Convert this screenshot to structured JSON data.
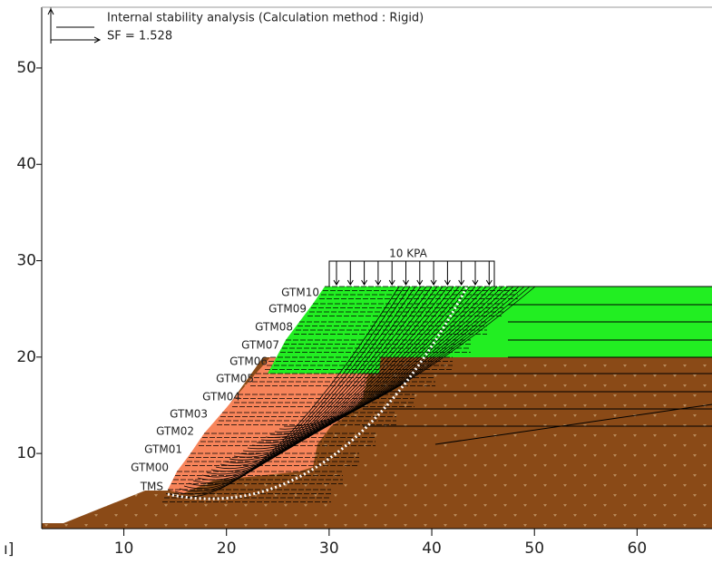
{
  "chart_data": {
    "type": "section",
    "title": "Internal stability analysis (Calculation method : Rigid)",
    "subtitle": "SF = 1.528",
    "load_label": "10 KPA",
    "x_label": "ı]",
    "layer_labels": [
      "TMS",
      "GTM00",
      "GTM01",
      "GTM02",
      "GTM03",
      "GTM04",
      "GTM05",
      "GTM06",
      "GTM07",
      "GTM08",
      "GTM09",
      "GTM10"
    ],
    "xlim": [
      2,
      67.3
    ],
    "ylim": [
      2.2,
      56.3
    ],
    "xticks": [
      10,
      20,
      30,
      40,
      50,
      60
    ],
    "yticks": [
      10,
      20,
      30,
      40,
      50
    ]
  }
}
